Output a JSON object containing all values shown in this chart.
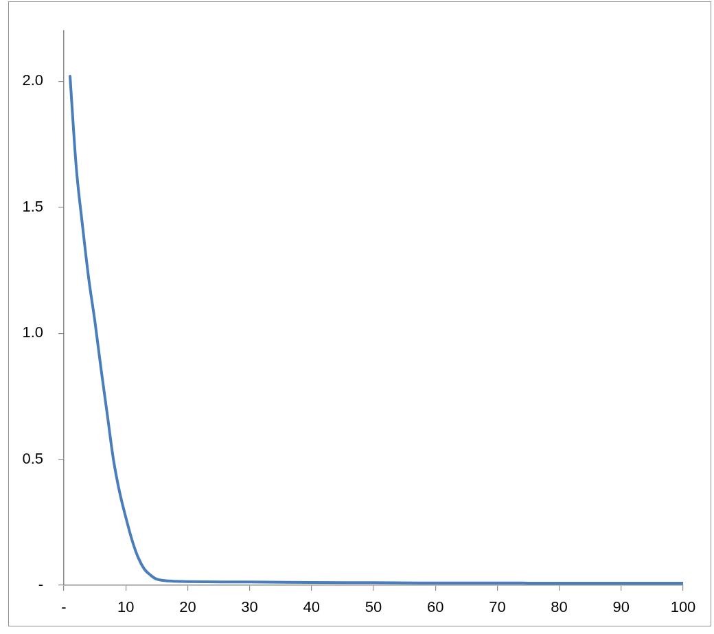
{
  "chart_data": {
    "type": "line",
    "x": [
      1,
      2,
      3,
      4,
      5,
      6,
      7,
      8,
      9,
      10,
      11,
      12,
      13,
      14,
      15,
      17,
      20,
      30,
      40,
      50,
      60,
      70,
      80,
      90,
      100
    ],
    "series": [
      {
        "color": "#4a7ebb",
        "values": [
          2.02,
          1.66,
          1.43,
          1.22,
          1.05,
          0.86,
          0.68,
          0.5,
          0.37,
          0.27,
          0.18,
          0.11,
          0.064,
          0.04,
          0.024,
          0.017,
          0.014,
          0.013,
          0.011,
          0.01,
          0.009,
          0.009,
          0.008,
          0.008,
          0.008
        ]
      }
    ],
    "xlim": [
      0,
      100
    ],
    "xticks": [
      {
        "value": 0,
        "label": "-"
      },
      10,
      20,
      30,
      40,
      50,
      60,
      70,
      80,
      90,
      100
    ],
    "ylim": [
      0,
      2.2
    ],
    "yticks": [
      {
        "value": 0,
        "label": "-"
      },
      0.5,
      {
        "value": 1,
        "label": "1.0"
      },
      1.5,
      {
        "value": 2,
        "label": "2.0"
      }
    ],
    "marker": "none"
  }
}
